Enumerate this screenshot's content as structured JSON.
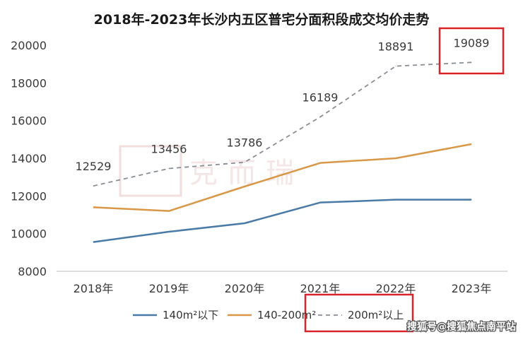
{
  "chart_data": {
    "type": "line",
    "title": "2018年-2023年长沙内五区普宅分面积段成交均价走势",
    "xlabel": "",
    "ylabel": "",
    "categories": [
      "2018年",
      "2019年",
      "2020年",
      "2021年",
      "2022年",
      "2023年"
    ],
    "ylim": [
      8000,
      20000
    ],
    "yticks": [
      "8000",
      "10000",
      "12000",
      "14000",
      "16000",
      "18000",
      "20000"
    ],
    "series": [
      {
        "name": "140m²以下",
        "color": "#4a7ba7",
        "dashed": false,
        "values": [
          9550,
          10100,
          10550,
          11650,
          11800,
          11800
        ]
      },
      {
        "name": "140-200m²",
        "color": "#d99748",
        "dashed": false,
        "values": [
          11400,
          11200,
          12500,
          13750,
          14000,
          14750
        ]
      },
      {
        "name": "200m²以上",
        "color": "#8a8e93",
        "dashed": true,
        "values": [
          12529,
          13456,
          13786,
          16189,
          18891,
          19089
        ],
        "data_labels": [
          "12529",
          "13456",
          "13786",
          "16189",
          "18891",
          "19089"
        ]
      }
    ],
    "grid": false,
    "legend_position": "bottom",
    "highlight_color": "#d9232b",
    "highlighted": [
      "19089 data label",
      "200m²以上 legend entry"
    ]
  },
  "watermark": "克而瑞",
  "footer": "搜狐号@搜狐焦点南平站"
}
